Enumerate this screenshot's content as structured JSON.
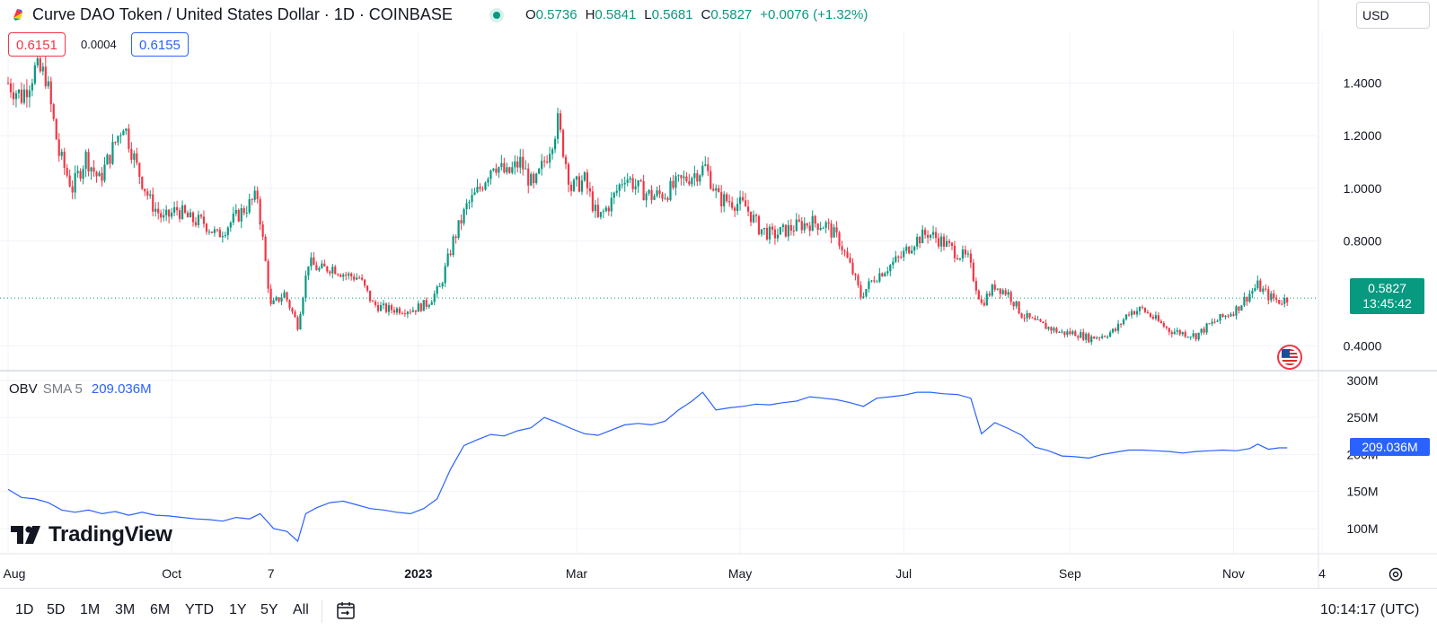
{
  "header": {
    "title": "Curve DAO Token / United States Dollar · 1D · COINBASE",
    "ohlc": {
      "o_label": "O",
      "o": "0.5736",
      "h_label": "H",
      "h": "0.5841",
      "l_label": "L",
      "l": "0.5681",
      "c_label": "C",
      "c": "0.5827",
      "change": "+0.0076 (+1.32%)"
    },
    "currency": "USD",
    "icons": {
      "logo": "curve-logo-icon",
      "status": "market-open-dot-icon"
    }
  },
  "pills": {
    "bid": "0.6151",
    "spread": "0.0004",
    "ask": "0.6155"
  },
  "price_badge": {
    "price": "0.5827",
    "countdown": "13:45:42"
  },
  "obv": {
    "name": "OBV",
    "params": "SMA 5",
    "value": "209.036M",
    "badge": "209.036M"
  },
  "logo_text": "TradingView",
  "toolbar": {
    "ranges": [
      "1D",
      "5D",
      "1M",
      "3M",
      "6M",
      "YTD",
      "1Y",
      "5Y",
      "All"
    ],
    "clock": "10:14:17 (UTC)"
  },
  "colors": {
    "up": "#089981",
    "down": "#f23645",
    "obv": "#2962ff",
    "grid": "#f0f3fa",
    "text": "#131722"
  },
  "chart_data": [
    {
      "type": "candlestick",
      "symbol": "CRVUSD",
      "interval": "1D",
      "y_tick_labels": [
        "1.4000",
        "1.2000",
        "1.0000",
        "0.8000",
        "0.4000"
      ],
      "y_ticks": [
        1.4,
        1.2,
        1.0,
        0.8,
        0.4
      ],
      "ylim": [
        0.31,
        1.6
      ],
      "x_tick_labels": [
        "Aug",
        "Oct",
        "7",
        "2023",
        "Mar",
        "May",
        "Jul",
        "Sep",
        "Nov",
        "4"
      ],
      "x_ticks": [
        "2022-08-01",
        "2022-10-01",
        "2022-11-07",
        "2023-01-01",
        "2023-03-01",
        "2023-05-01",
        "2023-07-01",
        "2023-09-01",
        "2023-11-01",
        "2023-12-04"
      ],
      "last_price": 0.5827,
      "grid": true,
      "close_series": [
        {
          "x": "2022-08-01",
          "y": 1.4
        },
        {
          "x": "2022-08-06",
          "y": 1.35
        },
        {
          "x": "2022-08-11",
          "y": 1.45
        },
        {
          "x": "2022-08-15",
          "y": 1.43
        },
        {
          "x": "2022-08-20",
          "y": 1.13
        },
        {
          "x": "2022-08-25",
          "y": 1.0
        },
        {
          "x": "2022-08-30",
          "y": 1.12
        },
        {
          "x": "2022-09-04",
          "y": 1.03
        },
        {
          "x": "2022-09-09",
          "y": 1.15
        },
        {
          "x": "2022-09-13",
          "y": 1.25
        },
        {
          "x": "2022-09-18",
          "y": 1.08
        },
        {
          "x": "2022-09-23",
          "y": 0.95
        },
        {
          "x": "2022-09-28",
          "y": 0.88
        },
        {
          "x": "2022-10-03",
          "y": 0.92
        },
        {
          "x": "2022-10-08",
          "y": 0.88
        },
        {
          "x": "2022-10-13",
          "y": 0.87
        },
        {
          "x": "2022-10-18",
          "y": 0.82
        },
        {
          "x": "2022-10-23",
          "y": 0.87
        },
        {
          "x": "2022-10-28",
          "y": 0.92
        },
        {
          "x": "2022-11-02",
          "y": 0.97
        },
        {
          "x": "2022-11-07",
          "y": 0.55
        },
        {
          "x": "2022-11-12",
          "y": 0.6
        },
        {
          "x": "2022-11-17",
          "y": 0.48
        },
        {
          "x": "2022-11-21",
          "y": 0.72
        },
        {
          "x": "2022-11-25",
          "y": 0.69
        },
        {
          "x": "2022-11-30",
          "y": 0.7
        },
        {
          "x": "2022-12-05",
          "y": 0.67
        },
        {
          "x": "2022-12-10",
          "y": 0.66
        },
        {
          "x": "2022-12-15",
          "y": 0.56
        },
        {
          "x": "2022-12-20",
          "y": 0.54
        },
        {
          "x": "2022-12-25",
          "y": 0.54
        },
        {
          "x": "2022-12-30",
          "y": 0.54
        },
        {
          "x": "2023-01-04",
          "y": 0.56
        },
        {
          "x": "2023-01-09",
          "y": 0.62
        },
        {
          "x": "2023-01-14",
          "y": 0.8
        },
        {
          "x": "2023-01-19",
          "y": 0.93
        },
        {
          "x": "2023-01-24",
          "y": 1.0
        },
        {
          "x": "2023-01-29",
          "y": 1.1
        },
        {
          "x": "2023-02-03",
          "y": 1.05
        },
        {
          "x": "2023-02-08",
          "y": 1.1
        },
        {
          "x": "2023-02-13",
          "y": 1.0
        },
        {
          "x": "2023-02-18",
          "y": 1.13
        },
        {
          "x": "2023-02-22",
          "y": 1.25
        },
        {
          "x": "2023-02-27",
          "y": 1.0
        },
        {
          "x": "2023-03-04",
          "y": 1.03
        },
        {
          "x": "2023-03-09",
          "y": 0.88
        },
        {
          "x": "2023-03-14",
          "y": 0.95
        },
        {
          "x": "2023-03-19",
          "y": 1.05
        },
        {
          "x": "2023-03-24",
          "y": 1.0
        },
        {
          "x": "2023-03-29",
          "y": 0.97
        },
        {
          "x": "2023-04-03",
          "y": 0.98
        },
        {
          "x": "2023-04-08",
          "y": 1.02
        },
        {
          "x": "2023-04-13",
          "y": 1.05
        },
        {
          "x": "2023-04-18",
          "y": 1.08
        },
        {
          "x": "2023-04-23",
          "y": 0.96
        },
        {
          "x": "2023-04-28",
          "y": 0.95
        },
        {
          "x": "2023-05-03",
          "y": 0.93
        },
        {
          "x": "2023-05-08",
          "y": 0.85
        },
        {
          "x": "2023-05-13",
          "y": 0.82
        },
        {
          "x": "2023-05-18",
          "y": 0.84
        },
        {
          "x": "2023-05-23",
          "y": 0.86
        },
        {
          "x": "2023-05-28",
          "y": 0.87
        },
        {
          "x": "2023-06-02",
          "y": 0.86
        },
        {
          "x": "2023-06-07",
          "y": 0.8
        },
        {
          "x": "2023-06-12",
          "y": 0.68
        },
        {
          "x": "2023-06-15",
          "y": 0.59
        },
        {
          "x": "2023-06-20",
          "y": 0.66
        },
        {
          "x": "2023-06-25",
          "y": 0.7
        },
        {
          "x": "2023-06-30",
          "y": 0.74
        },
        {
          "x": "2023-07-05",
          "y": 0.8
        },
        {
          "x": "2023-07-10",
          "y": 0.83
        },
        {
          "x": "2023-07-15",
          "y": 0.8
        },
        {
          "x": "2023-07-20",
          "y": 0.76
        },
        {
          "x": "2023-07-25",
          "y": 0.73
        },
        {
          "x": "2023-07-30",
          "y": 0.56
        },
        {
          "x": "2023-08-04",
          "y": 0.63
        },
        {
          "x": "2023-08-09",
          "y": 0.6
        },
        {
          "x": "2023-08-14",
          "y": 0.52
        },
        {
          "x": "2023-08-19",
          "y": 0.49
        },
        {
          "x": "2023-08-24",
          "y": 0.47
        },
        {
          "x": "2023-08-29",
          "y": 0.45
        },
        {
          "x": "2023-09-03",
          "y": 0.45
        },
        {
          "x": "2023-09-08",
          "y": 0.43
        },
        {
          "x": "2023-09-13",
          "y": 0.44
        },
        {
          "x": "2023-09-18",
          "y": 0.46
        },
        {
          "x": "2023-09-23",
          "y": 0.53
        },
        {
          "x": "2023-09-28",
          "y": 0.54
        },
        {
          "x": "2023-10-03",
          "y": 0.5
        },
        {
          "x": "2023-10-08",
          "y": 0.46
        },
        {
          "x": "2023-10-13",
          "y": 0.45
        },
        {
          "x": "2023-10-18",
          "y": 0.44
        },
        {
          "x": "2023-10-23",
          "y": 0.48
        },
        {
          "x": "2023-10-28",
          "y": 0.51
        },
        {
          "x": "2023-11-02",
          "y": 0.54
        },
        {
          "x": "2023-11-07",
          "y": 0.6
        },
        {
          "x": "2023-11-10",
          "y": 0.63
        },
        {
          "x": "2023-11-14",
          "y": 0.59
        },
        {
          "x": "2023-11-18",
          "y": 0.57
        },
        {
          "x": "2023-11-21",
          "y": 0.58
        }
      ]
    },
    {
      "type": "line",
      "name": "OBV",
      "y_tick_labels": [
        "300M",
        "250M",
        "200M",
        "150M",
        "100M"
      ],
      "y_ticks": [
        300,
        250,
        200,
        150,
        100
      ],
      "ylim": [
        66,
        312
      ],
      "last_value": 209.036,
      "series": [
        {
          "name": "OBV",
          "points": [
            {
              "x": "2022-08-01",
              "y": 153
            },
            {
              "x": "2022-08-06",
              "y": 142
            },
            {
              "x": "2022-08-11",
              "y": 140
            },
            {
              "x": "2022-08-16",
              "y": 135
            },
            {
              "x": "2022-08-21",
              "y": 125
            },
            {
              "x": "2022-08-26",
              "y": 122
            },
            {
              "x": "2022-08-31",
              "y": 125
            },
            {
              "x": "2022-09-05",
              "y": 120
            },
            {
              "x": "2022-09-10",
              "y": 123
            },
            {
              "x": "2022-09-15",
              "y": 118
            },
            {
              "x": "2022-09-20",
              "y": 122
            },
            {
              "x": "2022-09-25",
              "y": 118
            },
            {
              "x": "2022-09-30",
              "y": 117
            },
            {
              "x": "2022-10-05",
              "y": 115
            },
            {
              "x": "2022-10-10",
              "y": 113
            },
            {
              "x": "2022-10-15",
              "y": 112
            },
            {
              "x": "2022-10-20",
              "y": 110
            },
            {
              "x": "2022-10-25",
              "y": 115
            },
            {
              "x": "2022-10-30",
              "y": 113
            },
            {
              "x": "2022-11-03",
              "y": 120
            },
            {
              "x": "2022-11-08",
              "y": 100
            },
            {
              "x": "2022-11-13",
              "y": 96
            },
            {
              "x": "2022-11-17",
              "y": 83
            },
            {
              "x": "2022-11-20",
              "y": 120
            },
            {
              "x": "2022-11-24",
              "y": 128
            },
            {
              "x": "2022-11-29",
              "y": 135
            },
            {
              "x": "2022-12-04",
              "y": 137
            },
            {
              "x": "2022-12-09",
              "y": 132
            },
            {
              "x": "2022-12-14",
              "y": 127
            },
            {
              "x": "2022-12-19",
              "y": 125
            },
            {
              "x": "2022-12-24",
              "y": 122
            },
            {
              "x": "2022-12-29",
              "y": 120
            },
            {
              "x": "2023-01-03",
              "y": 127
            },
            {
              "x": "2023-01-08",
              "y": 140
            },
            {
              "x": "2023-01-13",
              "y": 180
            },
            {
              "x": "2023-01-18",
              "y": 212
            },
            {
              "x": "2023-01-23",
              "y": 220
            },
            {
              "x": "2023-01-28",
              "y": 227
            },
            {
              "x": "2023-02-02",
              "y": 225
            },
            {
              "x": "2023-02-07",
              "y": 232
            },
            {
              "x": "2023-02-12",
              "y": 236
            },
            {
              "x": "2023-02-17",
              "y": 250
            },
            {
              "x": "2023-02-22",
              "y": 243
            },
            {
              "x": "2023-02-27",
              "y": 235
            },
            {
              "x": "2023-03-04",
              "y": 228
            },
            {
              "x": "2023-03-09",
              "y": 226
            },
            {
              "x": "2023-03-14",
              "y": 233
            },
            {
              "x": "2023-03-19",
              "y": 240
            },
            {
              "x": "2023-03-24",
              "y": 242
            },
            {
              "x": "2023-03-29",
              "y": 240
            },
            {
              "x": "2023-04-03",
              "y": 245
            },
            {
              "x": "2023-04-08",
              "y": 260
            },
            {
              "x": "2023-04-13",
              "y": 272
            },
            {
              "x": "2023-04-17",
              "y": 284
            },
            {
              "x": "2023-04-22",
              "y": 260
            },
            {
              "x": "2023-04-27",
              "y": 263
            },
            {
              "x": "2023-05-02",
              "y": 265
            },
            {
              "x": "2023-05-07",
              "y": 268
            },
            {
              "x": "2023-05-12",
              "y": 267
            },
            {
              "x": "2023-05-17",
              "y": 270
            },
            {
              "x": "2023-05-22",
              "y": 272
            },
            {
              "x": "2023-05-27",
              "y": 278
            },
            {
              "x": "2023-06-01",
              "y": 276
            },
            {
              "x": "2023-06-06",
              "y": 274
            },
            {
              "x": "2023-06-11",
              "y": 270
            },
            {
              "x": "2023-06-16",
              "y": 265
            },
            {
              "x": "2023-06-21",
              "y": 276
            },
            {
              "x": "2023-06-26",
              "y": 278
            },
            {
              "x": "2023-07-01",
              "y": 280
            },
            {
              "x": "2023-07-06",
              "y": 284
            },
            {
              "x": "2023-07-11",
              "y": 284
            },
            {
              "x": "2023-07-16",
              "y": 282
            },
            {
              "x": "2023-07-21",
              "y": 281
            },
            {
              "x": "2023-07-26",
              "y": 276
            },
            {
              "x": "2023-07-30",
              "y": 228
            },
            {
              "x": "2023-08-04",
              "y": 243
            },
            {
              "x": "2023-08-09",
              "y": 235
            },
            {
              "x": "2023-08-14",
              "y": 226
            },
            {
              "x": "2023-08-19",
              "y": 210
            },
            {
              "x": "2023-08-24",
              "y": 205
            },
            {
              "x": "2023-08-29",
              "y": 198
            },
            {
              "x": "2023-09-03",
              "y": 197
            },
            {
              "x": "2023-09-08",
              "y": 195
            },
            {
              "x": "2023-09-13",
              "y": 200
            },
            {
              "x": "2023-09-18",
              "y": 203
            },
            {
              "x": "2023-09-23",
              "y": 206
            },
            {
              "x": "2023-09-28",
              "y": 206
            },
            {
              "x": "2023-10-03",
              "y": 205
            },
            {
              "x": "2023-10-08",
              "y": 204
            },
            {
              "x": "2023-10-13",
              "y": 202
            },
            {
              "x": "2023-10-18",
              "y": 204
            },
            {
              "x": "2023-10-23",
              "y": 205
            },
            {
              "x": "2023-10-28",
              "y": 206
            },
            {
              "x": "2023-11-02",
              "y": 205
            },
            {
              "x": "2023-11-07",
              "y": 208
            },
            {
              "x": "2023-11-10",
              "y": 214
            },
            {
              "x": "2023-11-14",
              "y": 207
            },
            {
              "x": "2023-11-18",
              "y": 209
            },
            {
              "x": "2023-11-21",
              "y": 209
            }
          ]
        }
      ]
    }
  ]
}
